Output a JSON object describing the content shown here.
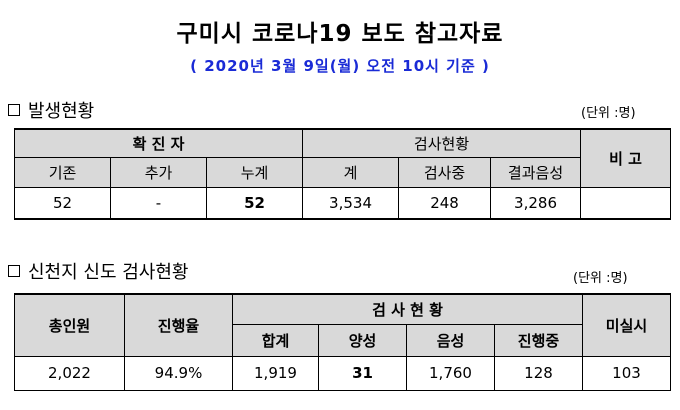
{
  "title": "구미시 코로나19 보도 참고자료",
  "subtitle": "( 2020년 3월 9일(월) 오전 10시 기준 )",
  "section1": {
    "heading": "발생현황",
    "unit": "(단위 :명)",
    "group_confirmed": "확 진 자",
    "group_test": "검사현황",
    "remark": "비 고",
    "col_existing": "기존",
    "col_added": "추가",
    "col_total": "누계",
    "col_sum": "계",
    "col_testing": "검사중",
    "col_negative": "결과음성",
    "val_existing": "52",
    "val_added": "-",
    "val_total": "52",
    "val_sum": "3,534",
    "val_testing": "248",
    "val_negative": "3,286",
    "val_remark": ""
  },
  "section2": {
    "heading": "신천지 신도 검사현황",
    "unit": "(단위 :명)",
    "col_members": "총인원",
    "col_progress": "진행율",
    "group_test": "검 사 현 황",
    "col_unchecked": "미실시",
    "col_total": "합계",
    "col_positive": "양성",
    "col_negative": "음성",
    "col_ongoing": "진행중",
    "val_members": "2,022",
    "val_progress": "94.9%",
    "val_total": "1,919",
    "val_positive": "31",
    "val_negative": "1,760",
    "val_ongoing": "128",
    "val_unchecked": "103"
  }
}
